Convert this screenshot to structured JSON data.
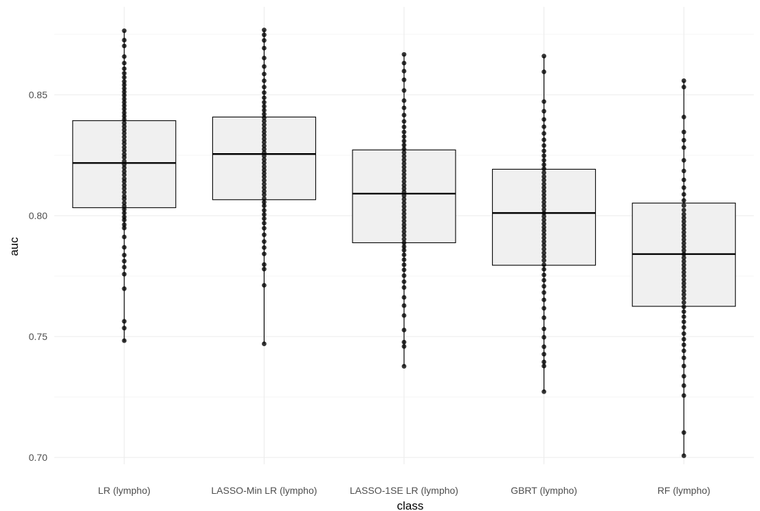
{
  "chart_data": {
    "type": "boxplot",
    "xlabel": "class",
    "ylabel": "auc",
    "ylim": [
      0.6975,
      0.8795
    ],
    "y_ticks": [
      0.7,
      0.75,
      0.8,
      0.85
    ],
    "y_tick_labels": [
      "0.70",
      "0.75",
      "0.80",
      "0.85"
    ],
    "grid": true,
    "categories": [
      "LR (lympho)",
      "LASSO-Min LR (lympho)",
      "LASSO-1SE LR (lympho)",
      "GBRT (lympho)",
      "RF (lympho)"
    ],
    "boxes": [
      {
        "category": "LR (lympho)",
        "min": 0.748,
        "q1": 0.8033,
        "median": 0.8218,
        "q3": 0.8393,
        "max": 0.8765
      },
      {
        "category": "LASSO-Min LR (lympho)",
        "min": 0.747,
        "q1": 0.8066,
        "median": 0.8255,
        "q3": 0.8408,
        "max": 0.8768
      },
      {
        "category": "LASSO-1SE LR (lympho)",
        "min": 0.7377,
        "q1": 0.7888,
        "median": 0.8091,
        "q3": 0.8272,
        "max": 0.8667
      },
      {
        "category": "GBRT (lympho)",
        "min": 0.7272,
        "q1": 0.7795,
        "median": 0.8011,
        "q3": 0.8192,
        "max": 0.866
      },
      {
        "category": "RF (lympho)",
        "min": 0.7007,
        "q1": 0.7625,
        "median": 0.7841,
        "q3": 0.8052,
        "max": 0.8558
      }
    ],
    "points": [
      [
        0.7483,
        0.7535,
        0.7563,
        0.7698,
        0.7758,
        0.7787,
        0.7812,
        0.7837,
        0.7869,
        0.7912,
        0.7949,
        0.7963,
        0.7982,
        0.7995,
        0.8011,
        0.8026,
        0.8039,
        0.8053,
        0.8069,
        0.8081,
        0.8097,
        0.8112,
        0.8126,
        0.8141,
        0.8153,
        0.8169,
        0.8183,
        0.8198,
        0.8212,
        0.8225,
        0.8241,
        0.8254,
        0.8269,
        0.8283,
        0.8298,
        0.8311,
        0.8326,
        0.8341,
        0.8355,
        0.8369,
        0.8383,
        0.8398,
        0.8412,
        0.8426,
        0.8441,
        0.8455,
        0.8469,
        0.8483,
        0.8498,
        0.8512,
        0.8526,
        0.8541,
        0.8555,
        0.8572,
        0.8589,
        0.8608,
        0.8631,
        0.8658,
        0.8702,
        0.8726,
        0.8765
      ],
      [
        0.747,
        0.7712,
        0.7779,
        0.7798,
        0.7842,
        0.7868,
        0.7893,
        0.7921,
        0.7948,
        0.7969,
        0.7988,
        0.8005,
        0.8022,
        0.8041,
        0.8056,
        0.8071,
        0.8087,
        0.8101,
        0.8116,
        0.8131,
        0.8146,
        0.8161,
        0.8175,
        0.8189,
        0.8203,
        0.8218,
        0.8232,
        0.8247,
        0.8261,
        0.8275,
        0.8289,
        0.8304,
        0.8318,
        0.8333,
        0.8347,
        0.8361,
        0.8376,
        0.8391,
        0.8405,
        0.842,
        0.8436,
        0.8452,
        0.8469,
        0.8488,
        0.8509,
        0.8532,
        0.8558,
        0.8586,
        0.8617,
        0.8652,
        0.8693,
        0.8725,
        0.8748,
        0.8768
      ],
      [
        0.7377,
        0.7459,
        0.7477,
        0.7527,
        0.7587,
        0.7628,
        0.7662,
        0.7703,
        0.7727,
        0.7752,
        0.7776,
        0.7797,
        0.7818,
        0.7838,
        0.7857,
        0.7872,
        0.7888,
        0.7903,
        0.7919,
        0.7934,
        0.7949,
        0.7963,
        0.7978,
        0.7993,
        0.8008,
        0.8023,
        0.8038,
        0.8053,
        0.8068,
        0.8083,
        0.8098,
        0.8112,
        0.8126,
        0.8141,
        0.8156,
        0.8171,
        0.8186,
        0.8201,
        0.8216,
        0.8231,
        0.8246,
        0.8261,
        0.8276,
        0.8292,
        0.8309,
        0.8327,
        0.8346,
        0.8367,
        0.839,
        0.8416,
        0.8446,
        0.8476,
        0.8518,
        0.8562,
        0.8598,
        0.8631,
        0.8667
      ],
      [
        0.7272,
        0.7378,
        0.7395,
        0.7427,
        0.7458,
        0.7497,
        0.7532,
        0.7578,
        0.7617,
        0.7652,
        0.7682,
        0.7708,
        0.7733,
        0.7755,
        0.7778,
        0.7797,
        0.7815,
        0.7831,
        0.7846,
        0.7862,
        0.7878,
        0.7893,
        0.7908,
        0.7923,
        0.7938,
        0.7952,
        0.7967,
        0.7982,
        0.7997,
        0.8011,
        0.8026,
        0.8041,
        0.8056,
        0.8071,
        0.8086,
        0.8101,
        0.8116,
        0.8131,
        0.8147,
        0.8162,
        0.8178,
        0.8194,
        0.8211,
        0.8229,
        0.8248,
        0.8268,
        0.829,
        0.8314,
        0.834,
        0.8368,
        0.8398,
        0.8432,
        0.8472,
        0.8595,
        0.866
      ],
      [
        0.7007,
        0.7103,
        0.7256,
        0.7297,
        0.7336,
        0.7378,
        0.7412,
        0.7441,
        0.7466,
        0.7489,
        0.7512,
        0.7538,
        0.7561,
        0.7582,
        0.7603,
        0.7623,
        0.7641,
        0.7658,
        0.7674,
        0.7689,
        0.7705,
        0.772,
        0.7735,
        0.7751,
        0.7766,
        0.7781,
        0.7796,
        0.7811,
        0.7826,
        0.7841,
        0.7856,
        0.7871,
        0.7886,
        0.7901,
        0.7916,
        0.7931,
        0.7946,
        0.7961,
        0.7976,
        0.7991,
        0.8006,
        0.8023,
        0.8042,
        0.8063,
        0.8088,
        0.8116,
        0.8148,
        0.8185,
        0.8229,
        0.8282,
        0.8312,
        0.8346,
        0.8408,
        0.8532,
        0.8558
      ]
    ]
  }
}
